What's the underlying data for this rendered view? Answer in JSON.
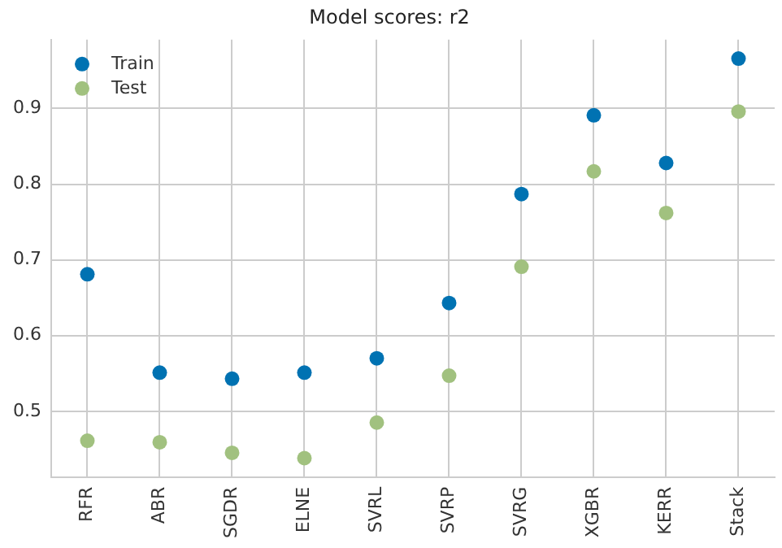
{
  "chart_data": {
    "type": "scatter",
    "title": "Model scores: r2",
    "categories": [
      "RFR",
      "ABR",
      "SGDR",
      "ELNE",
      "SVRL",
      "SVRP",
      "SVRG",
      "XGBR",
      "KERR",
      "Stack"
    ],
    "series": [
      {
        "name": "Train",
        "color": "#0072b2",
        "values": [
          0.681,
          0.551,
          0.543,
          0.551,
          0.57,
          0.643,
          0.787,
          0.891,
          0.828,
          0.966
        ]
      },
      {
        "name": "Test",
        "color": "#a1c17f",
        "values": [
          0.461,
          0.459,
          0.445,
          0.438,
          0.485,
          0.547,
          0.691,
          0.817,
          0.762,
          0.896
        ]
      }
    ],
    "ylim": [
      0.413,
      0.991
    ],
    "yticks": [
      0.5,
      0.6,
      0.7,
      0.8,
      0.9
    ],
    "grid": true,
    "legend": "top left",
    "marker": "circle"
  }
}
